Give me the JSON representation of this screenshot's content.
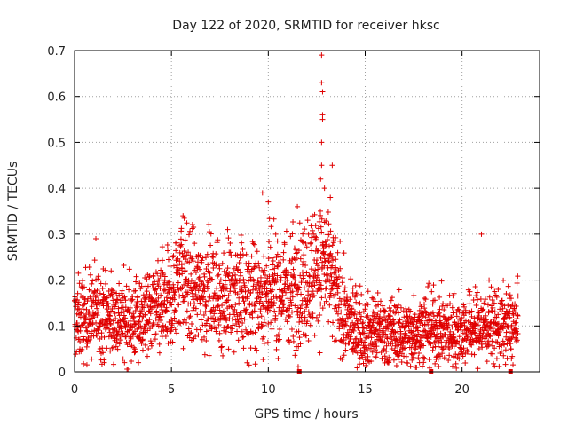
{
  "chart_data": {
    "type": "scatter",
    "title": "Day 122 of 2020, SRMTID for receiver hksc",
    "xlabel": "GPS time / hours",
    "ylabel": "SRMTID / TECUs",
    "xlim": [
      0,
      24
    ],
    "ylim": [
      0,
      0.7
    ],
    "x_ticks": [
      0,
      5,
      10,
      15,
      20
    ],
    "x_tick_labels": [
      "0",
      "5",
      "10",
      "15",
      "20"
    ],
    "y_ticks": [
      0,
      0.1,
      0.2,
      0.3,
      0.4,
      0.5,
      0.6,
      0.7
    ],
    "y_tick_labels": [
      "0",
      "0.1",
      "0.2",
      "0.3",
      "0.4",
      "0.5",
      "0.6",
      "0.7"
    ],
    "grid": true,
    "marker": "plus",
    "color": "#e00000",
    "data_x_range": [
      0,
      22.9
    ],
    "trend_x": [
      0,
      1,
      2,
      3,
      4,
      5,
      5.5,
      6,
      7,
      8,
      9,
      10,
      11,
      12,
      12.5,
      13,
      13.5,
      14,
      15,
      16,
      17,
      18,
      19,
      20,
      21,
      22,
      22.9
    ],
    "trend_y": [
      0.11,
      0.13,
      0.12,
      0.11,
      0.13,
      0.15,
      0.22,
      0.18,
      0.17,
      0.16,
      0.16,
      0.17,
      0.18,
      0.2,
      0.24,
      0.22,
      0.17,
      0.11,
      0.09,
      0.09,
      0.08,
      0.1,
      0.09,
      0.09,
      0.1,
      0.1,
      0.1
    ],
    "notable_points": [
      {
        "x": 12.75,
        "y": 0.69
      },
      {
        "x": 12.75,
        "y": 0.63
      },
      {
        "x": 12.8,
        "y": 0.61
      },
      {
        "x": 12.8,
        "y": 0.56
      },
      {
        "x": 12.8,
        "y": 0.55
      },
      {
        "x": 12.75,
        "y": 0.5
      },
      {
        "x": 12.75,
        "y": 0.45
      },
      {
        "x": 12.7,
        "y": 0.42
      },
      {
        "x": 13.3,
        "y": 0.45
      },
      {
        "x": 13.2,
        "y": 0.38
      },
      {
        "x": 12.9,
        "y": 0.4
      },
      {
        "x": 9.7,
        "y": 0.39
      },
      {
        "x": 10.0,
        "y": 0.37
      },
      {
        "x": 11.5,
        "y": 0.36
      },
      {
        "x": 5.6,
        "y": 0.34
      },
      {
        "x": 1.1,
        "y": 0.29
      },
      {
        "x": 7.9,
        "y": 0.31
      },
      {
        "x": 21.0,
        "y": 0.3
      },
      {
        "x": 3.3,
        "y": 0.02
      },
      {
        "x": 17.6,
        "y": 0.01
      },
      {
        "x": 17.8,
        "y": 0.02
      }
    ],
    "axis_markers_x": [
      11.6,
      18.4,
      22.5
    ]
  }
}
